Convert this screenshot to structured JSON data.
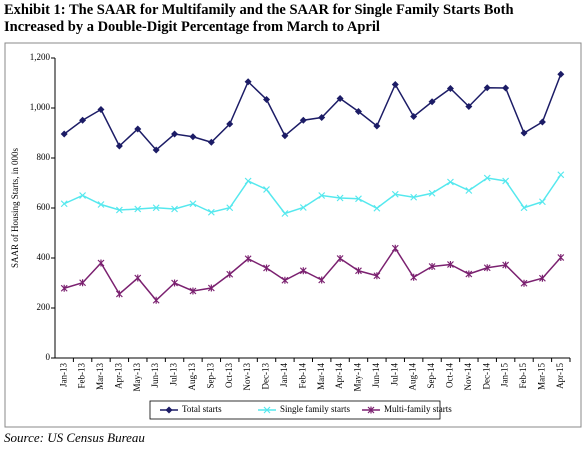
{
  "chart_data": {
    "type": "line",
    "title": "Exhibit 1: The SAAR for Multifamily and the SAAR for Single Family Starts Both Increased by a Double-Digit Percentage from March to April",
    "ylabel": "SAAR of Housing Starts, in 000s",
    "source": "Source: US Census Bureau",
    "categories": [
      "Jan-13",
      "Feb-13",
      "Mar-13",
      "Apr-13",
      "May-13",
      "Jun-13",
      "Jul-13",
      "Aug-13",
      "Sep-13",
      "Oct-13",
      "Nov-13",
      "Dec-13",
      "Jan-14",
      "Feb-14",
      "Mar-14",
      "Apr-14",
      "May-14",
      "Jun-14",
      "Jul-14",
      "Aug-14",
      "Sep-14",
      "Oct-14",
      "Nov-14",
      "Dec-14",
      "Jan-15",
      "Feb-15",
      "Mar-15",
      "Apr-15"
    ],
    "series": [
      {
        "name": "Total starts",
        "color": "#1c1c66",
        "marker": "diamond",
        "values": [
          896,
          951,
          994,
          848,
          916,
          832,
          896,
          885,
          863,
          936,
          1105,
          1034,
          889,
          951,
          962,
          1038,
          986,
          928,
          1094,
          966,
          1025,
          1078,
          1006,
          1081,
          1080,
          900,
          944,
          1135
        ]
      },
      {
        "name": "Single family starts",
        "color": "#55e8ee",
        "marker": "x",
        "values": [
          617,
          650,
          614,
          592,
          596,
          601,
          596,
          617,
          583,
          601,
          708,
          674,
          578,
          602,
          650,
          640,
          637,
          599,
          655,
          643,
          659,
          704,
          670,
          720,
          708,
          601,
          625,
          733
        ]
      },
      {
        "name": "Multi-family starts",
        "color": "#7b2170",
        "marker": "star",
        "values": [
          279,
          301,
          380,
          256,
          320,
          231,
          300,
          268,
          280,
          335,
          397,
          360,
          311,
          349,
          312,
          398,
          349,
          329,
          439,
          323,
          366,
          374,
          336,
          361,
          372,
          299,
          319,
          402
        ]
      }
    ],
    "ylim": [
      0,
      1200
    ],
    "yticks": [
      0,
      200,
      400,
      600,
      800,
      {
        "value": 1000,
        "label": "1,000"
      },
      {
        "value": 1200,
        "label": "1,200"
      }
    ],
    "legend": "bottom"
  }
}
